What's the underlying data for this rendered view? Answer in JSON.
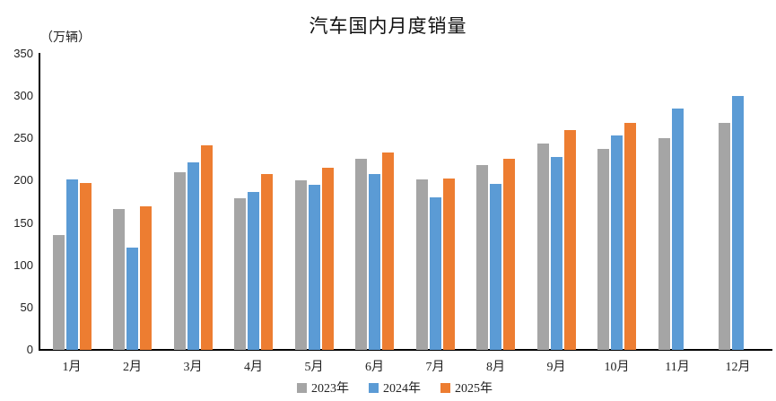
{
  "chart_data": {
    "type": "bar",
    "title": "汽车国内月度销量",
    "unit_label": "（万辆）",
    "categories": [
      "1月",
      "2月",
      "3月",
      "4月",
      "5月",
      "6月",
      "7月",
      "8月",
      "9月",
      "10月",
      "11月",
      "12月"
    ],
    "series": [
      {
        "name": "2023年",
        "color": "#A5A5A5",
        "values": [
          136,
          166,
          210,
          179,
          200,
          226,
          201,
          219,
          244,
          238,
          250,
          268
        ]
      },
      {
        "name": "2024年",
        "color": "#5B9BD5",
        "values": [
          201,
          121,
          222,
          187,
          195,
          208,
          180,
          196,
          228,
          253,
          285,
          300
        ]
      },
      {
        "name": "2025年",
        "color": "#ED7D31",
        "values": [
          197,
          170,
          242,
          208,
          215,
          233,
          203,
          226,
          260,
          268,
          null,
          null
        ]
      }
    ],
    "y_ticks": [
      350,
      300,
      250,
      200,
      150,
      100,
      50,
      0
    ],
    "ylim": [
      0,
      350
    ],
    "xlabel": "",
    "ylabel": "（万辆）",
    "grid": false,
    "legend_position": "bottom"
  }
}
